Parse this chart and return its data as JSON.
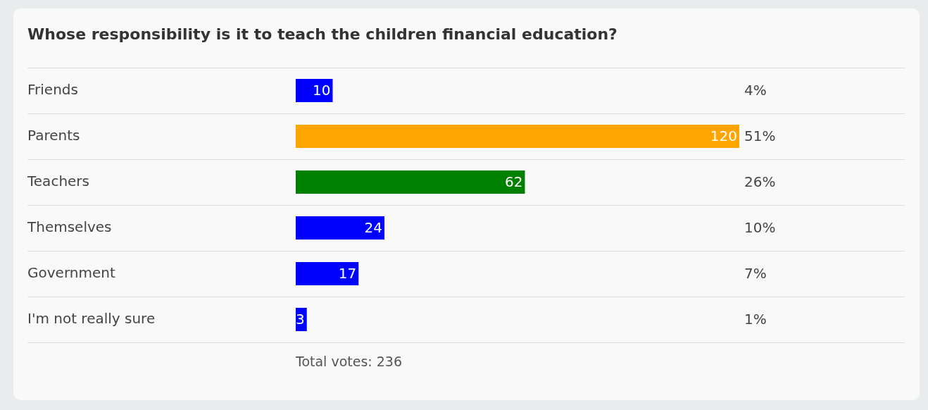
{
  "chart_data": {
    "type": "bar",
    "orientation": "horizontal",
    "title": "Whose responsibility is it to teach the children financial education?",
    "categories": [
      "Friends",
      "Parents",
      "Teachers",
      "Themselves",
      "Government",
      "I'm not really sure"
    ],
    "values": [
      10,
      120,
      62,
      24,
      17,
      3
    ],
    "colors": [
      "#0000ff",
      "#ffa500",
      "#008000",
      "#0000ff",
      "#0000ff",
      "#0000ff"
    ],
    "data_labels": true,
    "grid": "y",
    "annotations": [
      "4%",
      "51%",
      "26%",
      "10%",
      "7%",
      "1%",
      "Total votes: 236"
    ]
  }
}
